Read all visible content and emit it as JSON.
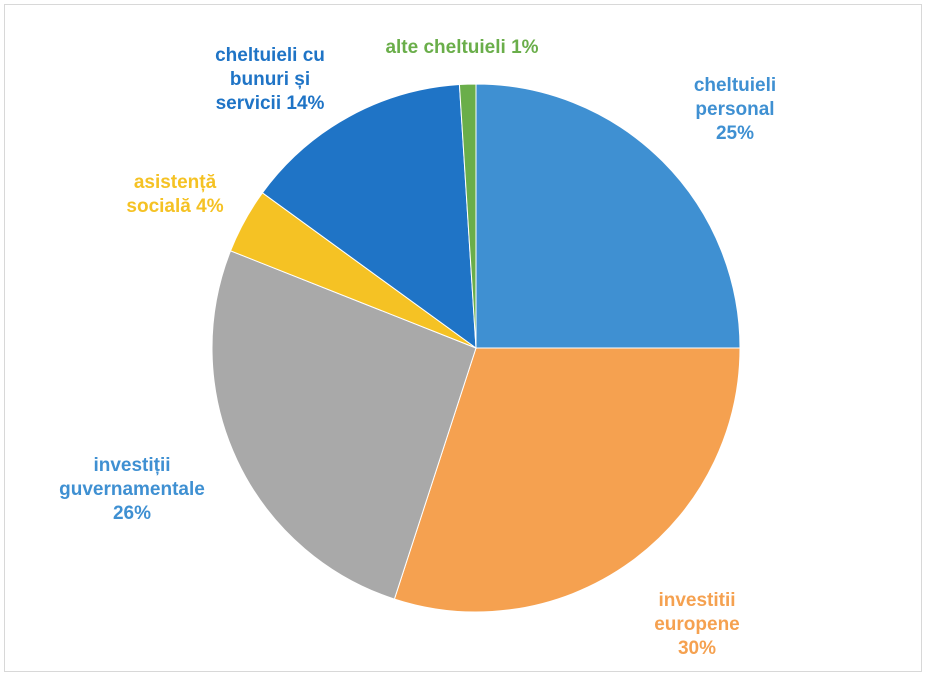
{
  "chart_data": {
    "type": "pie",
    "categories": [
      "cheltuieli personal",
      "investitii europene",
      "investiții guvernamentale",
      "asistență socială",
      "cheltuieli cu bunuri și servicii",
      "alte cheltuieli"
    ],
    "values": [
      25,
      30,
      26,
      4,
      14,
      1
    ],
    "value_labels": [
      "25%",
      "30%",
      "26%",
      "4%",
      "14%",
      "1%"
    ],
    "colors": [
      "#3f90d2",
      "#f5a150",
      "#a9a9a9",
      "#f5c224",
      "#1f74c6",
      "#6aae4a"
    ],
    "label_colors": [
      "#3f90d2",
      "#f5a150",
      "#3f90d2",
      "#f5c224",
      "#1f74c6",
      "#6aae4a"
    ]
  }
}
